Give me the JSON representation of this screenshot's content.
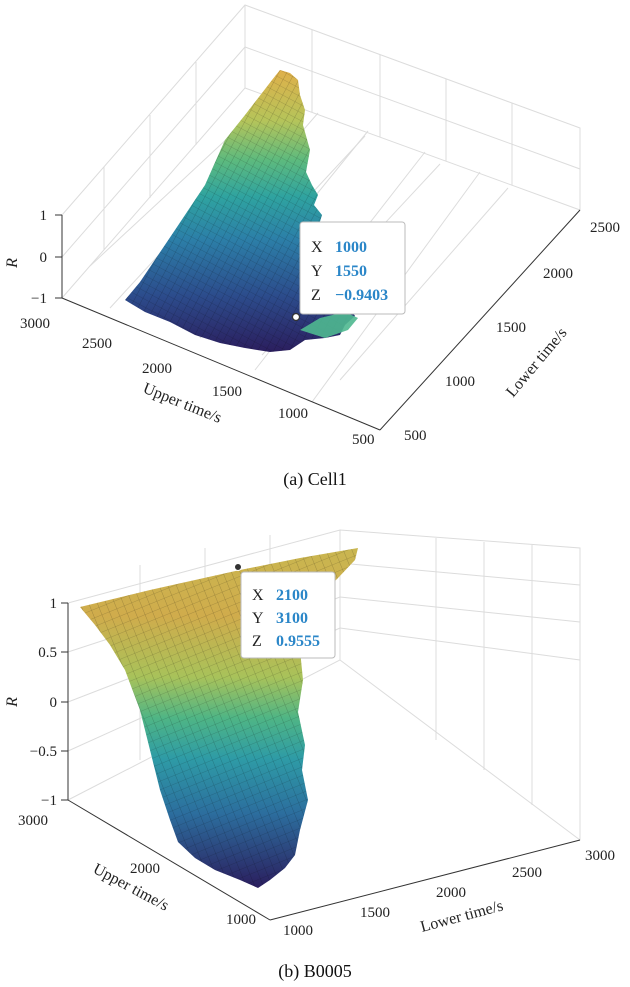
{
  "chart_data": [
    {
      "type": "surface3d",
      "caption": "(a) Cell1",
      "xlabel": "Upper time/s",
      "ylabel": "Lower time/s",
      "zlabel": "R",
      "x_ticks": [
        "3000",
        "2500",
        "2000",
        "1500",
        "1000",
        "500"
      ],
      "y_ticks": [
        "500",
        "1000",
        "1500",
        "2000",
        "2500"
      ],
      "z_ticks": [
        "1",
        "0",
        "−1"
      ],
      "xlim": [
        500,
        3000
      ],
      "ylim": [
        500,
        2500
      ],
      "zlim": [
        -1,
        1
      ],
      "colormap": [
        "#2b1e5e",
        "#2c4c8c",
        "#2c7fa8",
        "#2fa3a0",
        "#5dba7e",
        "#b5c45a",
        "#e0b04a"
      ],
      "datatip": {
        "X": "1000",
        "Y": "1550",
        "Z": "−0.9403"
      }
    },
    {
      "type": "surface3d",
      "caption": "(b) B0005",
      "xlabel": "Upper time/s",
      "ylabel": "Lower time/s",
      "zlabel": "R",
      "x_ticks": [
        "3000",
        "2000",
        "1000"
      ],
      "y_ticks": [
        "1000",
        "1500",
        "2000",
        "2500",
        "3000"
      ],
      "z_ticks": [
        "1",
        "0.5",
        "0",
        "−0.5",
        "−1"
      ],
      "xlim": [
        1000,
        3000
      ],
      "ylim": [
        1000,
        3000
      ],
      "zlim": [
        -1,
        1
      ],
      "colormap": [
        "#2b1e5e",
        "#2c4c8c",
        "#2c7fa8",
        "#2fa3a0",
        "#5dba7e",
        "#b5c45a",
        "#e0b04a"
      ],
      "datatip": {
        "X": "2100",
        "Y": "3100",
        "Z": "0.9555"
      }
    }
  ]
}
